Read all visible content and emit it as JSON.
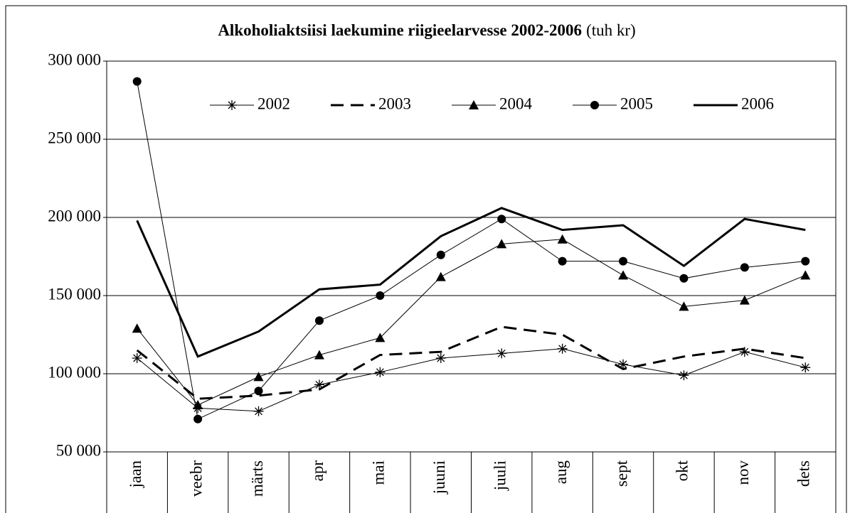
{
  "chart_data": {
    "type": "line",
    "title": "Alkoholiaktsiisi laekumine riigieelarvesse 2002-2006",
    "subtitle": "(tuh kr)",
    "categories": [
      "jaan",
      "veebr",
      "märts",
      "apr",
      "mai",
      "juuni",
      "juuli",
      "aug",
      "sept",
      "okt",
      "nov",
      "dets"
    ],
    "ylim": [
      50000,
      300000
    ],
    "yticks": [
      {
        "value": 50000,
        "label": "50 000"
      },
      {
        "value": 100000,
        "label": "100 000"
      },
      {
        "value": 150000,
        "label": "150 000"
      },
      {
        "value": 200000,
        "label": "200 000"
      },
      {
        "value": 250000,
        "label": "250 000"
      },
      {
        "value": 300000,
        "label": "300 000"
      }
    ],
    "grid": true,
    "legend": "top",
    "series": [
      {
        "name": "2002",
        "color": "#000000",
        "marker": "star",
        "dash": false,
        "width": 1,
        "values": [
          110000,
          78000,
          76000,
          93000,
          101000,
          110000,
          113000,
          116000,
          106000,
          99000,
          114000,
          104000
        ]
      },
      {
        "name": "2003",
        "color": "#000000",
        "marker": "none",
        "dash": true,
        "width": 3,
        "values": [
          115000,
          84000,
          86000,
          90000,
          112000,
          114000,
          130000,
          125000,
          103000,
          111000,
          116000,
          110000
        ]
      },
      {
        "name": "2004",
        "color": "#000000",
        "marker": "triangle",
        "dash": false,
        "width": 1,
        "values": [
          129000,
          80000,
          98000,
          112000,
          123000,
          162000,
          183000,
          186000,
          163000,
          143000,
          147000,
          163000
        ]
      },
      {
        "name": "2005",
        "color": "#000000",
        "marker": "circle",
        "dash": false,
        "width": 1,
        "values": [
          287000,
          71000,
          89000,
          134000,
          150000,
          176000,
          199000,
          172000,
          172000,
          161000,
          168000,
          172000
        ]
      },
      {
        "name": "2006",
        "color": "#000000",
        "marker": "none",
        "dash": false,
        "width": 3,
        "values": [
          198000,
          111000,
          127000,
          154000,
          157000,
          188000,
          206000,
          192000,
          195000,
          169000,
          199000,
          192000
        ]
      }
    ]
  }
}
